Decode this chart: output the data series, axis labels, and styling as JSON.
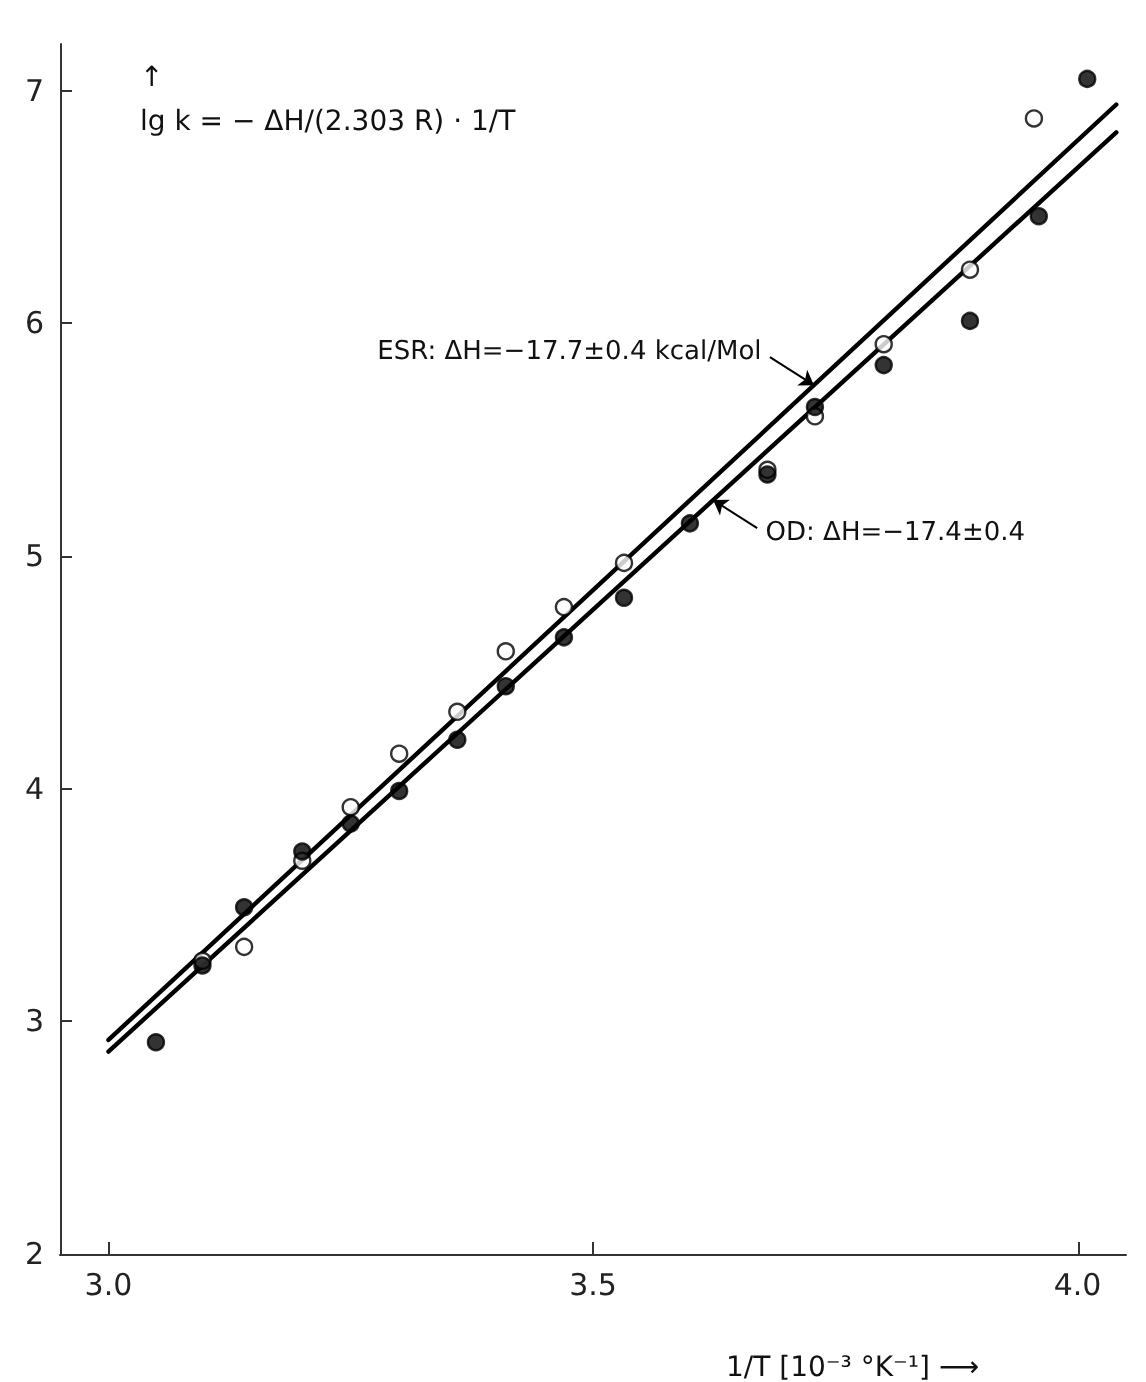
{
  "chart_data": {
    "type": "scatter",
    "xlabel": "1/T [10⁻³ °K⁻¹] ⟶",
    "ylabel": "↑\nlg k = − ΔH/(2.303 R) · 1/T",
    "xlim": [
      2.95,
      4.05
    ],
    "xticks": [
      {
        "value": 3.0,
        "label": "3.0"
      },
      3.5,
      {
        "value": 4.0,
        "label": "4.0"
      }
    ],
    "ylim": [
      2,
      7.2
    ],
    "yticks": [
      2,
      3,
      4,
      5,
      6,
      7
    ],
    "grid": false,
    "marker": "circle",
    "series": [
      {
        "color": "#ffffff",
        "x": [
          3.097,
          3.14,
          3.2,
          3.25,
          3.3,
          3.36,
          3.41,
          3.47,
          3.532,
          3.68,
          3.729,
          3.8,
          3.889,
          3.955
        ],
        "values": [
          3.26,
          3.32,
          3.69,
          3.92,
          4.15,
          4.33,
          4.59,
          4.78,
          4.97,
          5.37,
          5.6,
          5.91,
          6.23,
          6.88
        ]
      },
      {
        "color": "#000000",
        "x": [
          3.049,
          3.097,
          3.14,
          3.2,
          3.25,
          3.3,
          3.36,
          3.41,
          3.47,
          3.532,
          3.6,
          3.68,
          3.729,
          3.8,
          3.889,
          3.96,
          4.01
        ],
        "values": [
          2.91,
          3.24,
          3.49,
          3.73,
          3.85,
          3.99,
          4.21,
          4.44,
          4.65,
          4.82,
          5.14,
          5.35,
          5.64,
          5.82,
          6.01,
          6.46,
          7.05
        ]
      },
      {
        "type": "line",
        "marker": "none",
        "name": "ESR: ΔH=−17.7±0.4 kcal/Mol",
        "color": "#000000",
        "x": [
          3.0,
          4.04
        ],
        "values": [
          2.92,
          6.94
        ]
      },
      {
        "type": "line",
        "marker": "none",
        "name": "OD: ΔH=−17.4±0.4",
        "color": "#000000",
        "x": [
          3.0,
          4.04
        ],
        "values": [
          2.87,
          6.82
        ]
      }
    ]
  }
}
